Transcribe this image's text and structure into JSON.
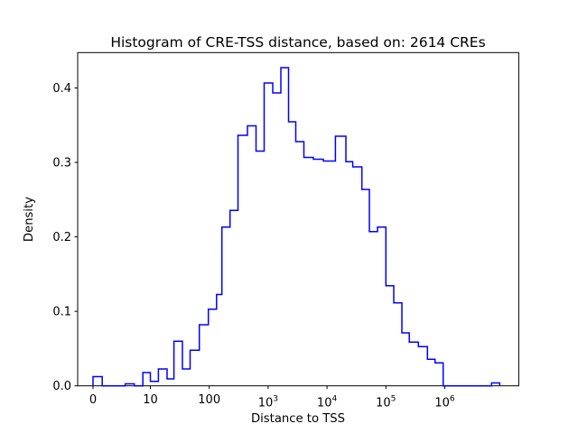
{
  "title": "Histogram of CRE-TSS distance, based on: 2614 CREs",
  "axes": {
    "xlabel": "Distance to TSS",
    "ylabel": "Density",
    "x_ticks": [
      {
        "label": "0",
        "value": 0
      },
      {
        "label": "10",
        "value": 10
      },
      {
        "label": "100",
        "value": 100
      },
      {
        "label": "10^3",
        "base": "10",
        "exp": "3",
        "value": 1000
      },
      {
        "label": "10^4",
        "base": "10",
        "exp": "4",
        "value": 10000
      },
      {
        "label": "10^5",
        "base": "10",
        "exp": "5",
        "value": 100000
      },
      {
        "label": "10^6",
        "base": "10",
        "exp": "6",
        "value": 1000000
      }
    ],
    "y_ticks": [
      {
        "label": "0.0",
        "value": 0.0
      },
      {
        "label": "0.1",
        "value": 0.1
      },
      {
        "label": "0.2",
        "value": 0.2
      },
      {
        "label": "0.3",
        "value": 0.3
      },
      {
        "label": "0.4",
        "value": 0.4
      }
    ]
  },
  "chart_data": {
    "type": "histogram-step",
    "title": "Histogram of CRE-TSS distance, based on: 2614 CREs",
    "xlabel": "Distance to TSS",
    "ylabel": "Density",
    "n_samples": 2614,
    "line_color": "#0000ff",
    "x_scale": "symlog (linear from 0 to 10, logarithmic above 10)",
    "x_range_shown": [
      0,
      9000000
    ],
    "ylim": [
      0,
      0.447
    ],
    "grid": false,
    "legend": "none",
    "bin_edges": [
      0,
      1.6,
      5.6,
      7.2,
      8.7,
      10,
      13.7,
      19.2,
      25.1,
      35,
      47.3,
      67.8,
      96.6,
      133,
      164,
      225,
      307,
      445,
      623,
      856,
      1197,
      1645,
      2222,
      2945,
      4046,
      5861,
      8650,
      13900,
      20900,
      27400,
      39100,
      52400,
      71900,
      100000,
      136000,
      187000,
      250000,
      356000,
      507000,
      682000,
      938000,
      6220000,
      8550000
    ],
    "densities": [
      0.0124,
      0,
      0.0027,
      0,
      0.0178,
      0.0061,
      0.0227,
      0.0093,
      0.0598,
      0.0227,
      0.0477,
      0.082,
      0.103,
      0.1226,
      0.2132,
      0.2355,
      0.3364,
      0.3491,
      0.3152,
      0.4067,
      0.3933,
      0.4272,
      0.3546,
      0.3279,
      0.3067,
      0.3043,
      0.3019,
      0.3352,
      0.3009,
      0.294,
      0.2637,
      0.2071,
      0.2132,
      0.1345,
      0.1114,
      0.0711,
      0.0586,
      0.0526,
      0.0356,
      0.0308,
      0,
      0.0039
    ]
  }
}
